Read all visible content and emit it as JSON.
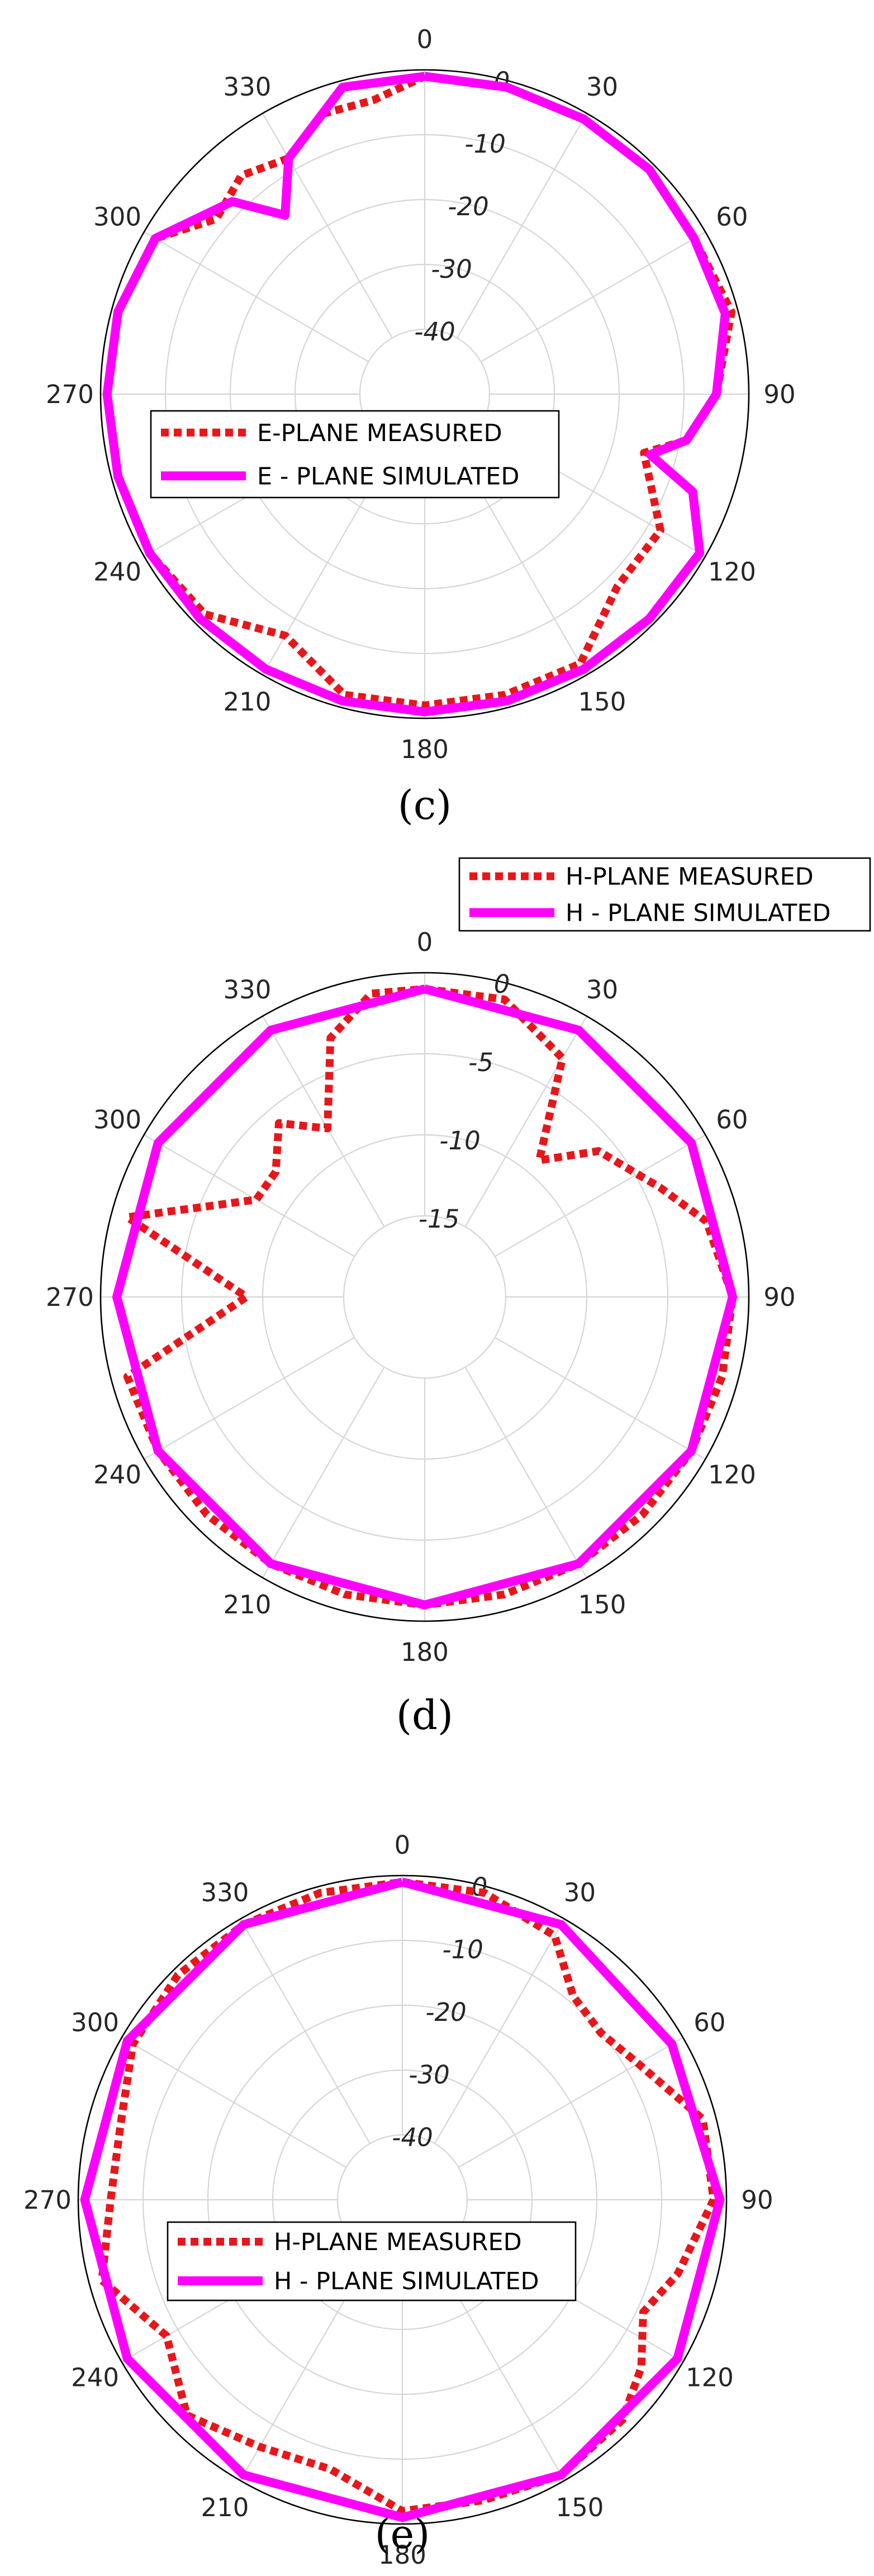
{
  "chart_data": [
    {
      "type": "polar",
      "panel_label": "(c)",
      "theta_labels": [
        "0",
        "30",
        "60",
        "90",
        "120",
        "150",
        "180",
        "210",
        "240",
        "270",
        "300",
        "330"
      ],
      "r_ticks": [
        0,
        -10,
        -20,
        -30,
        -40
      ],
      "rlim": [
        -50,
        0
      ],
      "grid": true,
      "legend": {
        "position": "inside-left",
        "entries": [
          "E-PLANE MEASURED",
          "E - PLANE SIMULATED"
        ]
      },
      "series": [
        {
          "name": "E-PLANE MEASURED",
          "style": "dotted",
          "color": "#e8161b",
          "points": [
            [
              0,
              -1
            ],
            [
              15,
              -1
            ],
            [
              30,
              -1
            ],
            [
              45,
              -1
            ],
            [
              60,
              -2
            ],
            [
              75,
              -1
            ],
            [
              90,
              -5
            ],
            [
              100,
              -9
            ],
            [
              105,
              -15
            ],
            [
              120,
              -8
            ],
            [
              135,
              -8
            ],
            [
              150,
              -2
            ],
            [
              165,
              -2
            ],
            [
              180,
              -2
            ],
            [
              195,
              -2
            ],
            [
              210,
              -7
            ],
            [
              225,
              -2
            ],
            [
              240,
              -1
            ],
            [
              255,
              -1
            ],
            [
              270,
              -1
            ],
            [
              285,
              -1
            ],
            [
              300,
              -2
            ],
            [
              310,
              -8
            ],
            [
              320,
              -6
            ],
            [
              330,
              -8
            ],
            [
              340,
              -4
            ],
            [
              350,
              -4
            ],
            [
              360,
              -1
            ]
          ]
        },
        {
          "name": "E - PLANE SIMULATED",
          "style": "solid",
          "color": "#ff00ff",
          "points": [
            [
              0,
              -1
            ],
            [
              15,
              -1
            ],
            [
              30,
              -1
            ],
            [
              45,
              -1
            ],
            [
              60,
              -2
            ],
            [
              75,
              -2
            ],
            [
              90,
              -5
            ],
            [
              100,
              -9
            ],
            [
              105,
              -14
            ],
            [
              110,
              -6
            ],
            [
              120,
              -1
            ],
            [
              135,
              -1
            ],
            [
              150,
              -1
            ],
            [
              165,
              -1
            ],
            [
              180,
              -1
            ],
            [
              195,
              -1
            ],
            [
              210,
              -1
            ],
            [
              225,
              -1
            ],
            [
              240,
              -1
            ],
            [
              255,
              -1
            ],
            [
              270,
              -1
            ],
            [
              285,
              -1
            ],
            [
              300,
              -2
            ],
            [
              315,
              -8
            ],
            [
              322,
              -15
            ],
            [
              330,
              -8
            ],
            [
              345,
              -1
            ],
            [
              360,
              -1
            ]
          ]
        }
      ]
    },
    {
      "type": "polar",
      "panel_label": "(d)",
      "theta_labels": [
        "0",
        "30",
        "60",
        "90",
        "120",
        "150",
        "180",
        "210",
        "240",
        "270",
        "300",
        "330"
      ],
      "r_ticks": [
        0,
        -5,
        -10,
        -15
      ],
      "rlim": [
        -20,
        0
      ],
      "grid": true,
      "legend": {
        "position": "top-right outside",
        "entries": [
          "H-PLANE MEASURED",
          "H - PLANE SIMULATED"
        ]
      },
      "series": [
        {
          "name": "H-PLANE MEASURED",
          "style": "dotted",
          "color": "#e8161b",
          "points": [
            [
              0,
              -1
            ],
            [
              15,
              -1
            ],
            [
              30,
              -3
            ],
            [
              40,
              -9
            ],
            [
              50,
              -6
            ],
            [
              65,
              -4
            ],
            [
              75,
              -2
            ],
            [
              90,
              -1
            ],
            [
              105,
              -1
            ],
            [
              120,
              -1
            ],
            [
              135,
              -1
            ],
            [
              150,
              -1
            ],
            [
              165,
              -1
            ],
            [
              180,
              -1
            ],
            [
              195,
              -1
            ],
            [
              210,
              -1
            ],
            [
              225,
              -1
            ],
            [
              240,
              -1
            ],
            [
              255,
              -1
            ],
            [
              270,
              -9
            ],
            [
              285,
              -1
            ],
            [
              300,
              -8
            ],
            [
              310,
              -8
            ],
            [
              320,
              -6
            ],
            [
              330,
              -8
            ],
            [
              340,
              -3
            ],
            [
              350,
              -1
            ],
            [
              360,
              -1
            ]
          ]
        },
        {
          "name": "H - PLANE SIMULATED",
          "style": "solid",
          "color": "#ff00ff",
          "points": [
            [
              0,
              -1
            ],
            [
              30,
              -1
            ],
            [
              60,
              -1
            ],
            [
              90,
              -1
            ],
            [
              120,
              -1
            ],
            [
              150,
              -1
            ],
            [
              180,
              -1
            ],
            [
              210,
              -1
            ],
            [
              240,
              -1
            ],
            [
              270,
              -1
            ],
            [
              300,
              -1
            ],
            [
              330,
              -1
            ],
            [
              360,
              -1
            ]
          ]
        }
      ]
    },
    {
      "type": "polar",
      "panel_label": "(e)",
      "theta_labels": [
        "0",
        "30",
        "60",
        "90",
        "120",
        "150",
        "180",
        "210",
        "240",
        "270",
        "300",
        "330"
      ],
      "r_ticks": [
        0,
        -10,
        -20,
        -30,
        -40
      ],
      "rlim": [
        -50,
        0
      ],
      "grid": true,
      "legend": {
        "position": "inside-center",
        "entries": [
          "H-PLANE MEASURED",
          "H - PLANE SIMULATED"
        ]
      },
      "series": [
        {
          "name": "H-PLANE MEASURED",
          "style": "dotted",
          "color": "#e8161b",
          "points": [
            [
              0,
              -1
            ],
            [
              15,
              -1
            ],
            [
              30,
              -3
            ],
            [
              40,
              -9
            ],
            [
              50,
              -10
            ],
            [
              60,
              -8
            ],
            [
              75,
              -2
            ],
            [
              90,
              -2
            ],
            [
              105,
              -6
            ],
            [
              115,
              -9
            ],
            [
              125,
              -5
            ],
            [
              135,
              -2
            ],
            [
              150,
              -1
            ],
            [
              165,
              -2
            ],
            [
              180,
              -2
            ],
            [
              195,
              -7
            ],
            [
              210,
              -6
            ],
            [
              225,
              -3
            ],
            [
              240,
              -8
            ],
            [
              255,
              -2
            ],
            [
              270,
              -5
            ],
            [
              285,
              -5
            ],
            [
              300,
              -2
            ],
            [
              315,
              -1
            ],
            [
              330,
              -1
            ],
            [
              345,
              -1
            ],
            [
              360,
              -1
            ]
          ]
        },
        {
          "name": "H - PLANE SIMULATED",
          "style": "solid",
          "color": "#ff00ff",
          "points": [
            [
              0,
              -1
            ],
            [
              30,
              -1
            ],
            [
              60,
              -2
            ],
            [
              90,
              -1
            ],
            [
              120,
              -1
            ],
            [
              150,
              -1
            ],
            [
              180,
              -1
            ],
            [
              210,
              -1
            ],
            [
              240,
              -1
            ],
            [
              270,
              -1
            ],
            [
              300,
              -1
            ],
            [
              330,
              -1
            ],
            [
              360,
              -1
            ]
          ]
        }
      ]
    }
  ]
}
